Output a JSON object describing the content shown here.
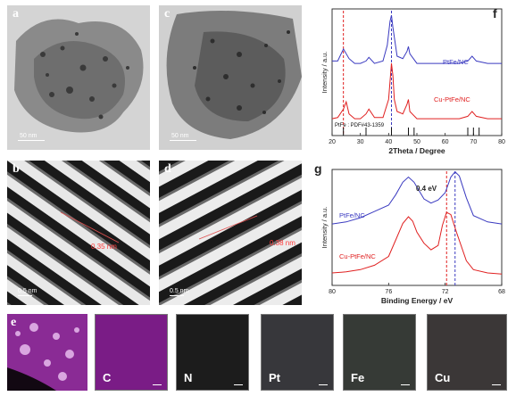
{
  "panels": {
    "a": {
      "letter": "a",
      "scale": "50 nm"
    },
    "c": {
      "letter": "c",
      "scale": "50 nm"
    },
    "b": {
      "letter": "b",
      "spacing": "0.35 nm",
      "scale": "0.5 nm"
    },
    "d": {
      "letter": "d",
      "spacing": "0.38 nm",
      "scale": "0.5 nm"
    },
    "e": {
      "letter": "e"
    }
  },
  "maps": [
    {
      "label": "C",
      "color": "#8a1e8a"
    },
    {
      "label": "N",
      "color": "#1f1f1f"
    },
    {
      "label": "Pt",
      "color": "#3a3a3e"
    },
    {
      "label": "Fe",
      "color": "#3a3d3a"
    },
    {
      "label": "Cu",
      "color": "#3e3a3a"
    }
  ],
  "chart_data": [
    {
      "panel": "f",
      "type": "line",
      "xlabel": "2Theta / Degree",
      "ylabel": "Intensity / a.u.",
      "xlim": [
        20,
        80
      ],
      "xticks": [
        20,
        30,
        40,
        50,
        60,
        70,
        80
      ],
      "series": [
        {
          "name": "PtFe/NC",
          "color": "#3a3ac0",
          "x": [
            20,
            22,
            24,
            26,
            28,
            30,
            32,
            33,
            35,
            38,
            39.5,
            40.5,
            41,
            41.5,
            43,
            45,
            46.5,
            47,
            47.5,
            50,
            55,
            60,
            65,
            68,
            69.5,
            71,
            75,
            80
          ],
          "y": [
            0.62,
            0.62,
            0.72,
            0.64,
            0.6,
            0.6,
            0.62,
            0.65,
            0.6,
            0.62,
            0.75,
            0.95,
            1.0,
            0.9,
            0.66,
            0.64,
            0.7,
            0.74,
            0.68,
            0.6,
            0.6,
            0.6,
            0.6,
            0.62,
            0.66,
            0.62,
            0.6,
            0.6
          ]
        },
        {
          "name": "Cu-PtFe/NC",
          "color": "#e02020",
          "x": [
            20,
            22,
            24,
            25,
            26,
            28,
            30,
            32,
            33,
            35,
            38,
            40,
            41,
            41.5,
            42,
            43,
            45,
            46.5,
            47,
            47.5,
            50,
            55,
            60,
            65,
            68,
            69.5,
            71,
            75,
            80
          ],
          "y": [
            0.14,
            0.15,
            0.22,
            0.28,
            0.18,
            0.14,
            0.14,
            0.18,
            0.22,
            0.15,
            0.15,
            0.3,
            0.6,
            0.5,
            0.3,
            0.2,
            0.18,
            0.26,
            0.3,
            0.2,
            0.14,
            0.14,
            0.14,
            0.14,
            0.16,
            0.2,
            0.16,
            0.14,
            0.14
          ]
        }
      ],
      "annotations": {
        "ref": "PtFe : PDF#43-1359"
      },
      "ref_sticks": [
        24,
        32,
        41,
        47,
        49,
        68,
        70,
        72
      ],
      "dashed_lines": [
        24,
        41
      ]
    },
    {
      "panel": "g",
      "type": "line",
      "xlabel": "Binding Energy / eV",
      "ylabel": "Intensity / a.u.",
      "xlim": [
        80,
        68
      ],
      "xticks": [
        80,
        76,
        72,
        68
      ],
      "series": [
        {
          "name": "PtFe/NC",
          "color": "#3a3ac0",
          "x": [
            80,
            79,
            78,
            77,
            76,
            75.5,
            75,
            74.6,
            74.2,
            73.5,
            73,
            72.5,
            72,
            71.6,
            71.3,
            71,
            70.5,
            70,
            69,
            68
          ],
          "y": [
            0.5,
            0.52,
            0.56,
            0.62,
            0.68,
            0.78,
            0.9,
            0.95,
            0.9,
            0.74,
            0.7,
            0.73,
            0.8,
            0.95,
            1.0,
            0.96,
            0.75,
            0.58,
            0.52,
            0.5
          ]
        },
        {
          "name": "Cu-PtFe/NC",
          "color": "#e02020",
          "x": [
            80,
            79,
            78,
            77,
            76,
            75.5,
            75,
            74.6,
            74.3,
            74,
            73.5,
            73,
            72.5,
            72.2,
            71.9,
            71.6,
            71.2,
            70.5,
            70,
            69,
            68
          ],
          "y": [
            0.05,
            0.06,
            0.08,
            0.12,
            0.2,
            0.35,
            0.5,
            0.56,
            0.52,
            0.42,
            0.32,
            0.26,
            0.3,
            0.48,
            0.6,
            0.58,
            0.42,
            0.16,
            0.08,
            0.05,
            0.04
          ]
        }
      ],
      "annotations": {
        "shift": "0.4 eV"
      },
      "dashed_lines": [
        71.9,
        71.3
      ]
    }
  ]
}
